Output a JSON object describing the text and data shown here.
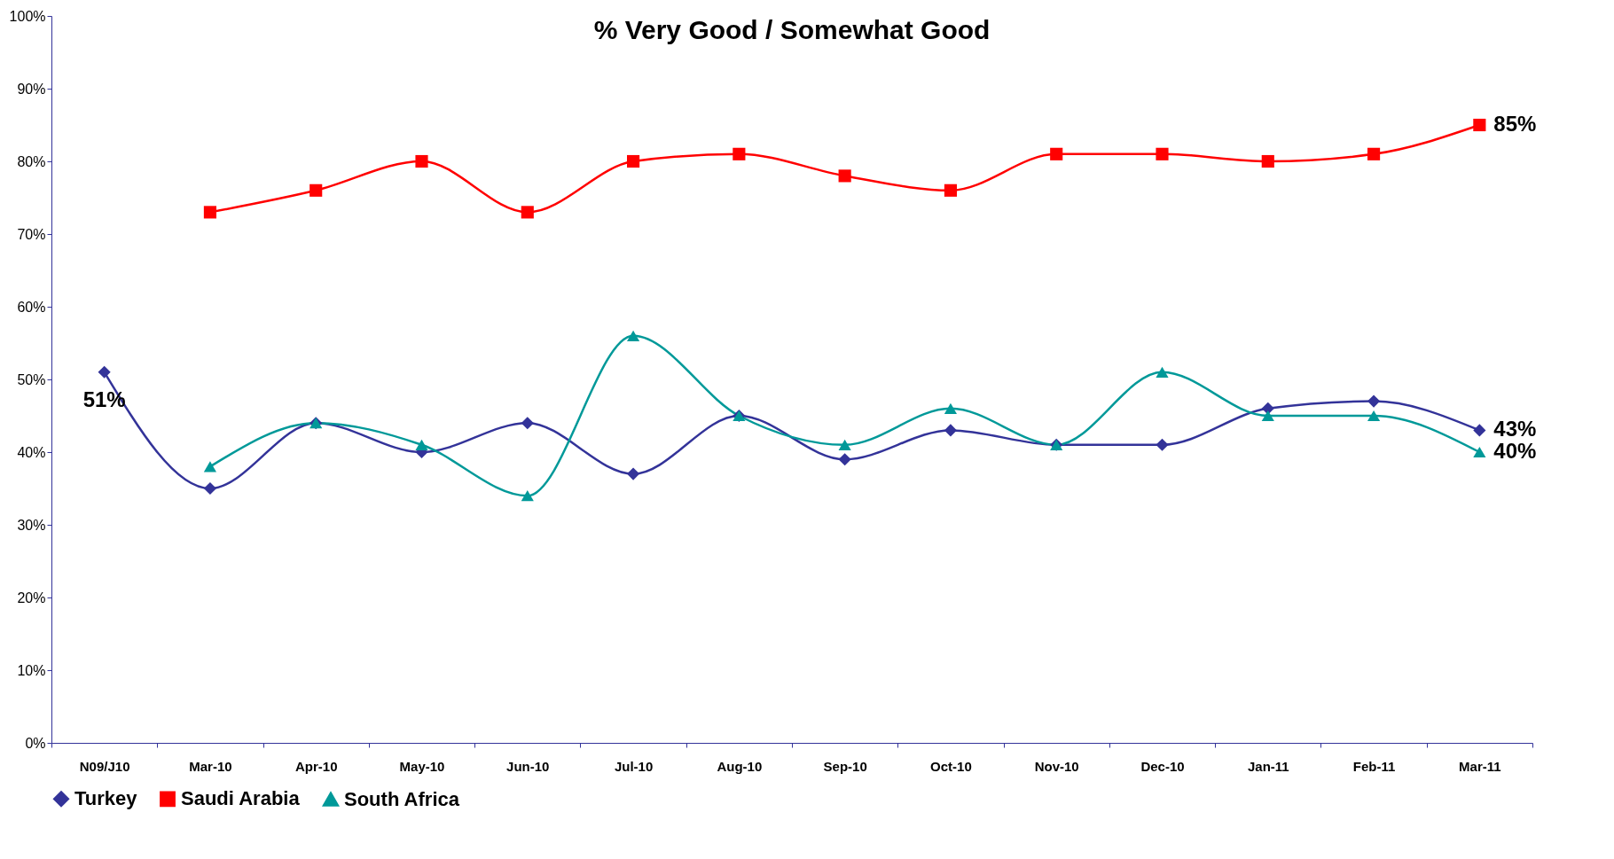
{
  "chart_data": {
    "type": "line",
    "title": "% Very Good / Somewhat Good",
    "categories": [
      "N09/J10",
      "Mar-10",
      "Apr-10",
      "May-10",
      "Jun-10",
      "Jul-10",
      "Aug-10",
      "Sep-10",
      "Oct-10",
      "Nov-10",
      "Dec-10",
      "Jan-11",
      "Feb-11",
      "Mar-11"
    ],
    "series": [
      {
        "name": "Turkey",
        "color": "#333399",
        "marker": "diamond",
        "values": [
          51,
          35,
          44,
          40,
          44,
          37,
          45,
          39,
          43,
          41,
          41,
          46,
          47,
          43
        ],
        "value_labels": [
          "51%",
          null,
          null,
          null,
          null,
          null,
          null,
          null,
          null,
          null,
          null,
          null,
          null,
          "43%"
        ]
      },
      {
        "name": "Saudi Arabia",
        "color": "#ff0000",
        "marker": "square",
        "values": [
          null,
          73,
          76,
          80,
          73,
          80,
          81,
          78,
          76,
          81,
          81,
          80,
          81,
          85
        ],
        "value_labels": [
          null,
          null,
          null,
          null,
          null,
          null,
          null,
          null,
          null,
          null,
          null,
          null,
          null,
          "85%"
        ]
      },
      {
        "name": "South Africa",
        "color": "#009999",
        "marker": "triangle",
        "values": [
          null,
          38,
          44,
          41,
          34,
          56,
          45,
          41,
          46,
          41,
          51,
          45,
          45,
          40
        ],
        "value_labels": [
          null,
          null,
          null,
          null,
          null,
          null,
          null,
          null,
          null,
          null,
          null,
          null,
          null,
          "40%"
        ]
      }
    ],
    "ylim": [
      0,
      100
    ],
    "yticks": [
      {
        "value": 0,
        "label": "0%"
      },
      {
        "value": 10,
        "label": "10%"
      },
      {
        "value": 20,
        "label": "20%"
      },
      {
        "value": 30,
        "label": "30%"
      },
      {
        "value": 40,
        "label": "40%"
      },
      {
        "value": 50,
        "label": "50%"
      },
      {
        "value": 60,
        "label": "60%"
      },
      {
        "value": 70,
        "label": "70%"
      },
      {
        "value": 80,
        "label": "80%"
      },
      {
        "value": 90,
        "label": "90%"
      },
      {
        "value": 100,
        "label": "100%"
      }
    ],
    "legend": "bottom",
    "grid": false
  }
}
